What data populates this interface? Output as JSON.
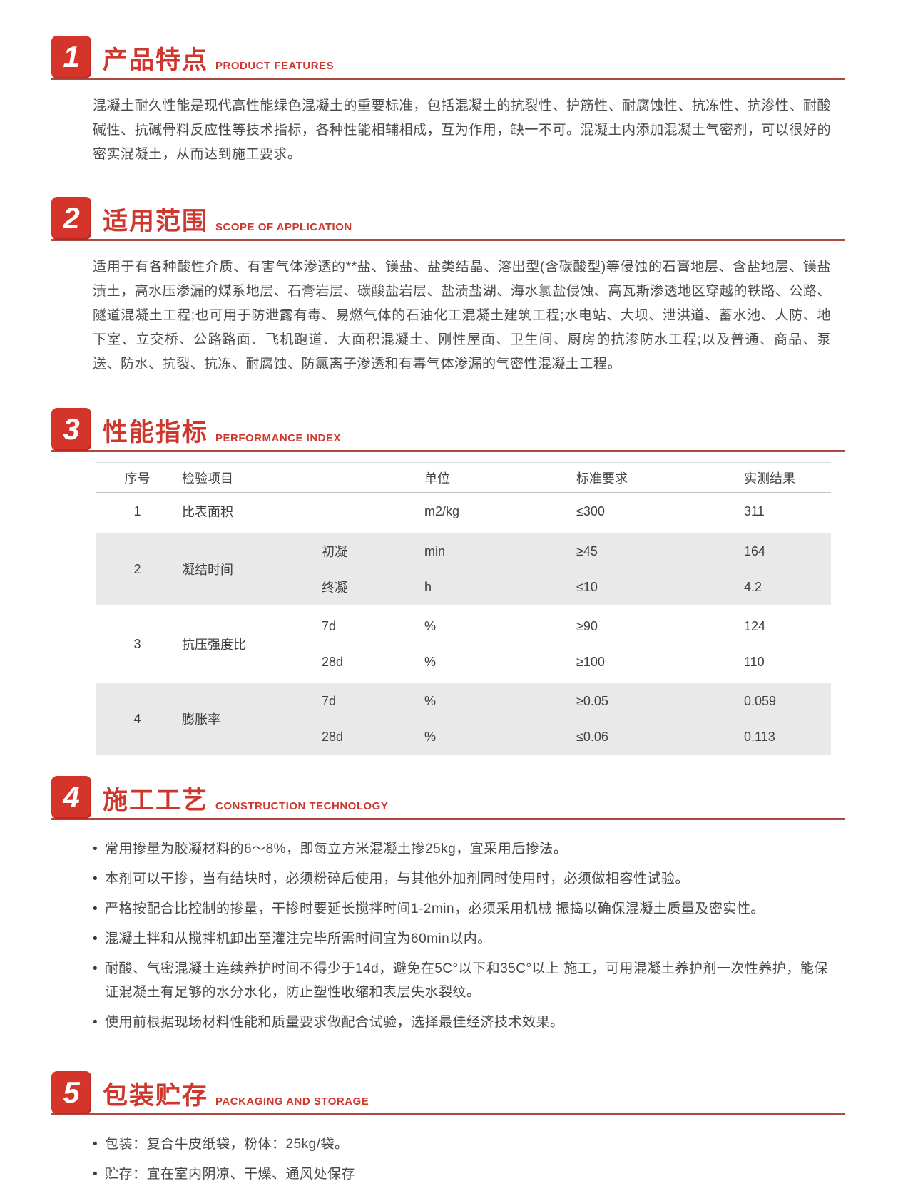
{
  "theme": {
    "badge_red": "#d5342b",
    "title_red": "#cd372e",
    "underline_red": "#aa4a40",
    "body_text": "#4b4b4b",
    "table_stripe": "#e9e9e9"
  },
  "sections": {
    "s1": {
      "num": "1",
      "title_zh": "产品特点",
      "title_en": "PRODUCT FEATURES",
      "body": "混凝土耐久性能是现代高性能绿色混凝土的重要标准，包括混凝土的抗裂性、护筋性、耐腐蚀性、抗冻性、抗渗性、耐酸碱性、抗碱骨料反应性等技术指标，各种性能相辅相成，互为作用，缺一不可。混凝土内添加混凝土气密剂，可以很好的密实混凝土，从而达到施工要求。"
    },
    "s2": {
      "num": "2",
      "title_zh": "适用范围",
      "title_en": "SCOPE OF APPLICATION",
      "body": "适用于有各种酸性介质、有害气体渗透的**盐、镁盐、盐类结晶、溶出型(含碳酸型)等侵蚀的石膏地层、含盐地层、镁盐渍土，高水压渗漏的煤系地层、石膏岩层、碳酸盐岩层、盐渍盐湖、海水氯盐侵蚀、高瓦斯渗透地区穿越的铁路、公路、隧道混凝土工程;也可用于防泄露有毒、易燃气体的石油化工混凝土建筑工程;水电站、大坝、泄洪道、蓄水池、人防、地下室、立交桥、公路路面、飞机跑道、大面积混凝土、刚性屋面、卫生间、厨房的抗渗防水工程;以及普通、商品、泵送、防水、抗裂、抗冻、耐腐蚀、防氯离子渗透和有毒气体渗漏的气密性混凝土工程。"
    },
    "s3": {
      "num": "3",
      "title_zh": "性能指标",
      "title_en": "PERFORMANCE INDEX"
    },
    "s4": {
      "num": "4",
      "title_zh": "施工工艺",
      "title_en": "CONSTRUCTION TECHNOLOGY"
    },
    "s5": {
      "num": "5",
      "title_zh": "包装贮存",
      "title_en": "PACKAGING AND STORAGE"
    }
  },
  "table": {
    "headers": {
      "no": "序号",
      "item": "检验项目",
      "unit": "单位",
      "standard": "标准要求",
      "result": "实测结果"
    },
    "r1": {
      "no": "1",
      "item": "比表面积",
      "sub": "",
      "unit": "m2/kg",
      "standard": "≤300",
      "result": "311"
    },
    "b2": {
      "no": "2",
      "item": "凝结时间",
      "sub1": {
        "name": "初凝",
        "unit": "min",
        "standard": "≥45",
        "result": "164"
      },
      "sub2": {
        "name": "终凝",
        "unit": "h",
        "standard": "≤10",
        "result": "4.2"
      }
    },
    "b3": {
      "no": "3",
      "item": "抗压强度比",
      "sub1": {
        "name": "7d",
        "unit": "%",
        "standard": "≥90",
        "result": "124"
      },
      "sub2": {
        "name": "28d",
        "unit": "%",
        "standard": "≥100",
        "result": "110"
      }
    },
    "b4": {
      "no": "4",
      "item": "膨胀率",
      "sub1": {
        "name": "7d",
        "unit": "%",
        "standard": "≥0.05",
        "result": "0.059"
      },
      "sub2": {
        "name": "28d",
        "unit": "%",
        "standard": "≤0.06",
        "result": "0.113"
      }
    }
  },
  "bullets4": [
    "常用掺量为胶凝材料的6～8%，即每立方米混凝土掺25kg，宜采用后掺法。",
    "本剂可以干掺，当有结块时，必须粉碎后使用，与其他外加剂同时使用时，必须做相容性试验。",
    "严格按配合比控制的掺量，干掺时要延长搅拌时间1-2min，必须采用机械 振捣以确保混凝土质量及密实性。",
    "混凝土拌和从搅拌机卸出至灌注完毕所需时间宜为60min以内。",
    "耐酸、气密混凝土连续养护时间不得少于14d，避免在5C°以下和35C°以上 施工，可用混凝土养护剂一次性养护，能保证混凝土有足够的水分水化，防止塑性收缩和表层失水裂纹。",
    "使用前根据现场材料性能和质量要求做配合试验，选择最佳经济技术效果。"
  ],
  "bullets5": [
    "包装：复合牛皮纸袋，粉体：25kg/袋。",
    "贮存：宜在室内阴凉、干燥、通风处保存"
  ]
}
